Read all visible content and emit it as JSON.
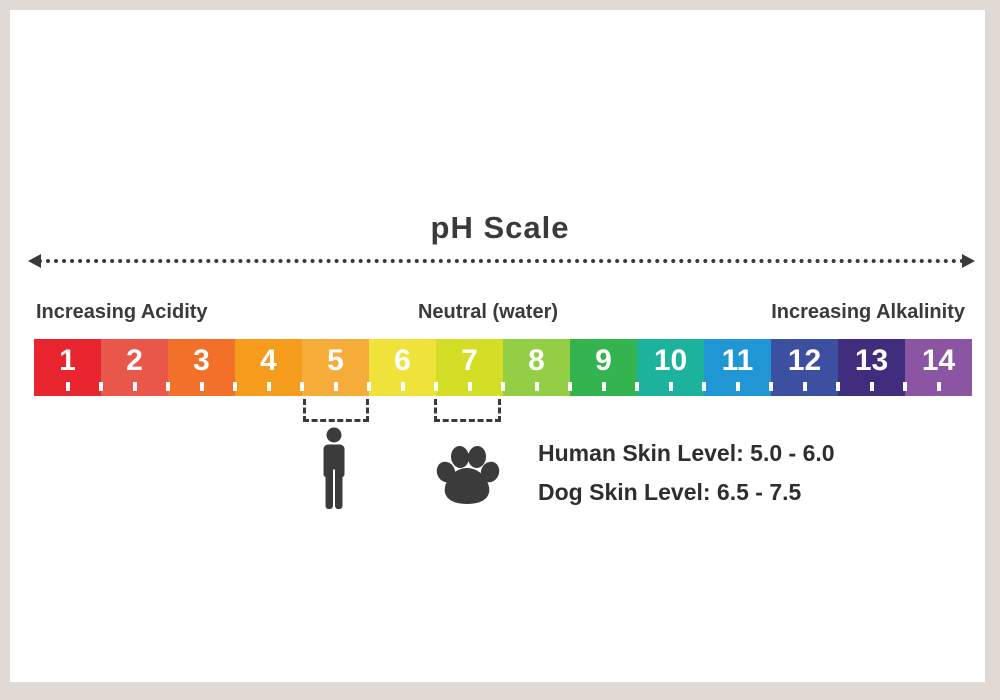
{
  "page": {
    "frame_color": "#e1dad4",
    "content_background": "#ffffff",
    "text_color": "#3a3a3a"
  },
  "title": "pH Scale",
  "scale_header": {
    "left": "Increasing Acidity",
    "center": "Neutral (water)",
    "right": "Increasing Alkalinity"
  },
  "chart_data": {
    "type": "scale",
    "title": "pH Scale",
    "axis_range": [
      1,
      14
    ],
    "categories": [
      "1",
      "2",
      "3",
      "4",
      "5",
      "6",
      "7",
      "8",
      "9",
      "10",
      "11",
      "12",
      "13",
      "14"
    ],
    "colors": [
      "#e8252e",
      "#e9564a",
      "#f3702b",
      "#f59c1d",
      "#f6ac38",
      "#efe33b",
      "#d5de27",
      "#94ce44",
      "#33b44f",
      "#1cb29b",
      "#2096d4",
      "#3d4fa1",
      "#402d7d",
      "#8c55a3"
    ],
    "number_color": "#ffffff",
    "tick_color": "#ffffff",
    "arrow_color": "#3a3a3a",
    "annotations": [
      {
        "subject": "human",
        "icon": "human-icon",
        "text": "Human Skin Level: 5.0 - 6.0",
        "range": [
          5.0,
          6.0
        ]
      },
      {
        "subject": "dog",
        "icon": "paw-icon",
        "text": "Dog Skin Level: 6.5 - 7.5",
        "range": [
          6.5,
          7.5
        ]
      }
    ]
  }
}
